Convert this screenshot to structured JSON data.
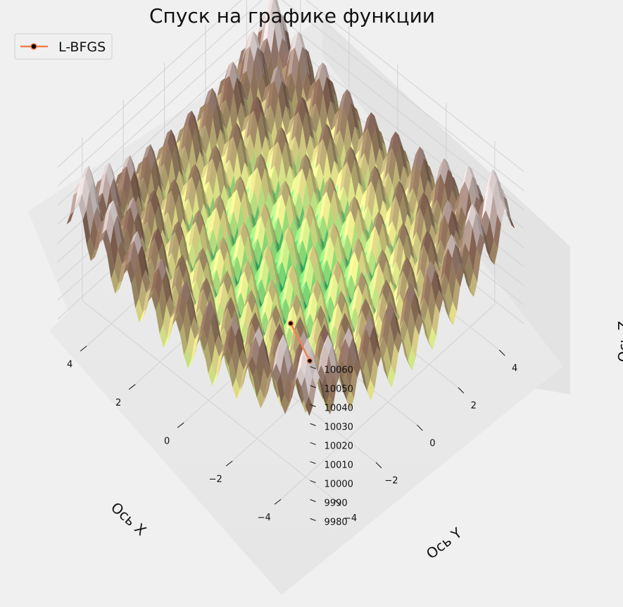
{
  "chart_data": {
    "type": "surface3d",
    "title": "Спуск на графике функции",
    "xlabel": "Ось X",
    "ylabel": "Ось Y",
    "zlabel": "Ось Z",
    "x_ticks": [
      "−4",
      "−2",
      "0",
      "2",
      "4"
    ],
    "y_ticks": [
      "−4",
      "−2",
      "0",
      "2",
      "4"
    ],
    "z_ticks": [
      "9980",
      "9990",
      "10000",
      "10010",
      "10020",
      "10030",
      "10040",
      "10050",
      "10060"
    ],
    "xlim": [
      -5,
      5
    ],
    "ylim": [
      -5,
      5
    ],
    "zlim": [
      9978,
      10064
    ],
    "surface": {
      "function": "rastrigin-like",
      "colormap": [
        "#0a84f0",
        "#10d070",
        "#90ee80",
        "#ffff99",
        "#b09a70",
        "#8a6656",
        "#e8dcdc"
      ]
    },
    "series": [
      {
        "name": "L-BFGS",
        "color": "#f0804f",
        "marker_color": "#000000",
        "points": [
          {
            "x": -5.1,
            "y": -5.1,
            "z": 10061
          },
          {
            "x": 0.0,
            "y": 0.0,
            "z": 9979
          }
        ]
      }
    ],
    "grid": true,
    "legend_position": "top-left"
  }
}
